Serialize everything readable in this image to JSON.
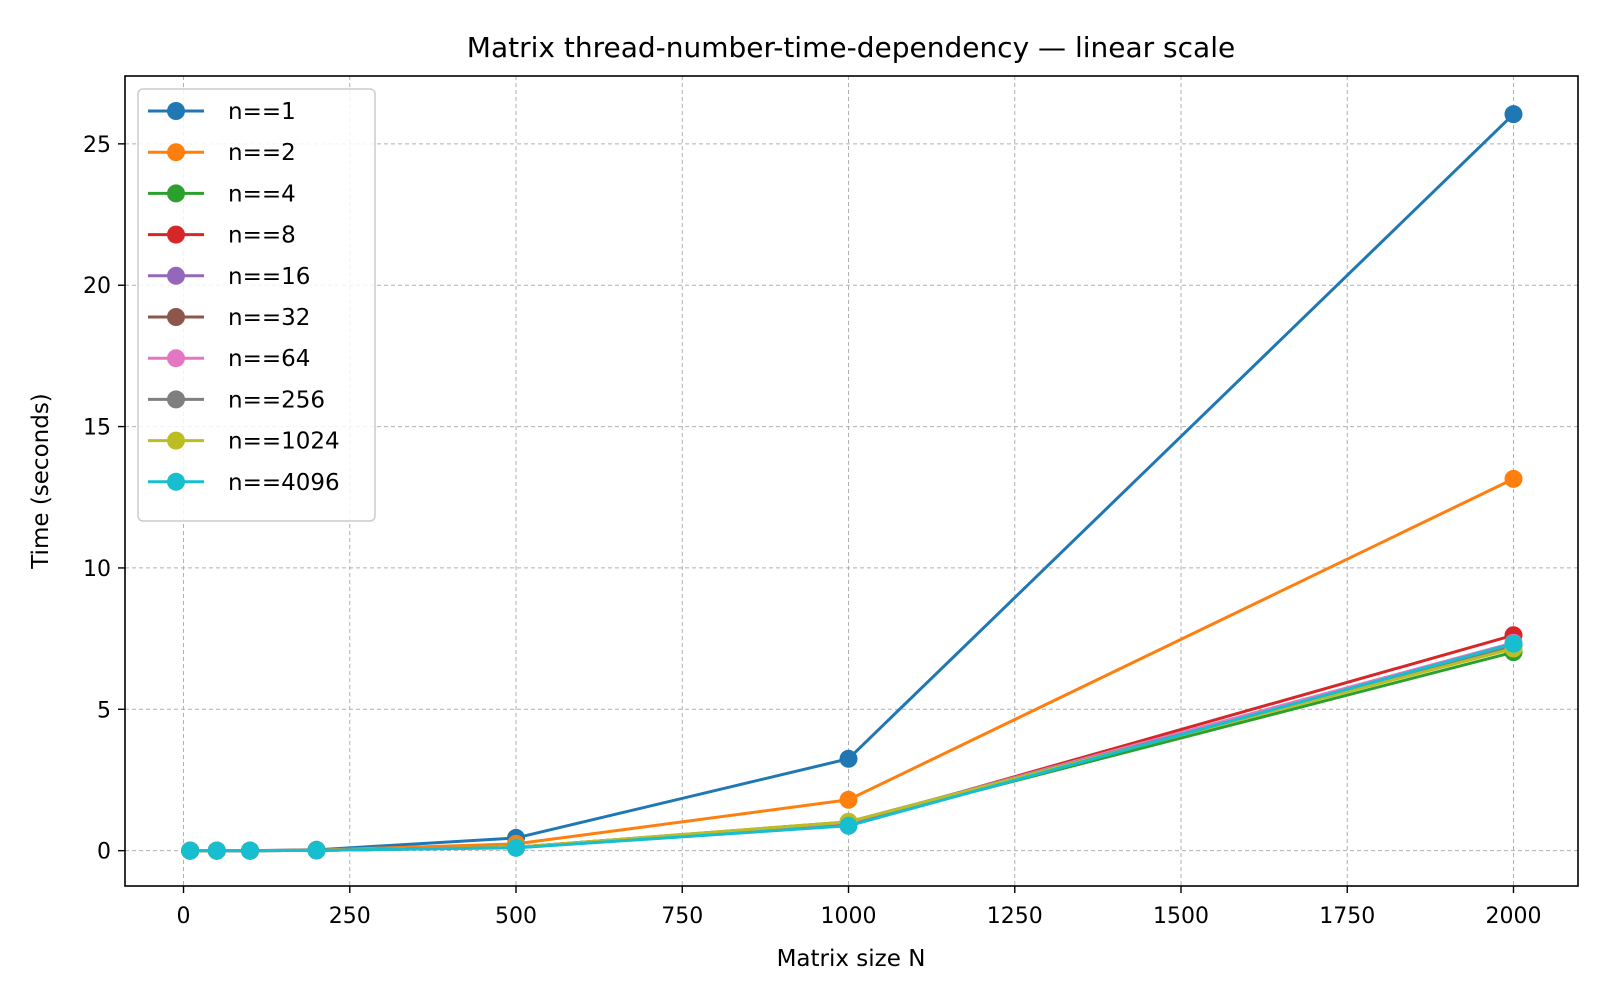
{
  "chart_data": {
    "type": "line",
    "title": "Matrix thread-number-time-dependency — linear scale",
    "xlabel": "Matrix size N",
    "ylabel": "Time (seconds)",
    "xlim": [
      -88,
      2097
    ],
    "ylim": [
      -1.25,
      27.4
    ],
    "xticks": [
      0,
      250,
      500,
      750,
      1000,
      1250,
      1500,
      1750,
      2000
    ],
    "yticks": [
      0,
      5,
      10,
      15,
      20,
      25
    ],
    "grid": true,
    "legend_position": "top-left",
    "x": [
      10,
      50,
      100,
      200,
      500,
      1000,
      2000
    ],
    "series": [
      {
        "name": "n==1",
        "color": "#1f77b4",
        "values": [
          0.0,
          0.0,
          0.0,
          0.03,
          0.45,
          3.25,
          26.05
        ]
      },
      {
        "name": "n==2",
        "color": "#ff7f0e",
        "values": [
          0.0,
          0.0,
          0.0,
          0.02,
          0.24,
          1.8,
          13.15
        ]
      },
      {
        "name": "n==4",
        "color": "#2ca02c",
        "values": [
          0.0,
          0.0,
          0.0,
          0.01,
          0.12,
          0.95,
          7.02
        ]
      },
      {
        "name": "n==8",
        "color": "#d62728",
        "values": [
          0.0,
          0.0,
          0.0,
          0.01,
          0.12,
          0.95,
          7.62
        ]
      },
      {
        "name": "n==16",
        "color": "#9467bd",
        "values": [
          0.0,
          0.0,
          0.0,
          0.01,
          0.12,
          1.0,
          7.3
        ]
      },
      {
        "name": "n==32",
        "color": "#8c564b",
        "values": [
          0.0,
          0.0,
          0.0,
          0.01,
          0.12,
          0.98,
          7.25
        ]
      },
      {
        "name": "n==64",
        "color": "#e377c2",
        "values": [
          0.0,
          0.0,
          0.0,
          0.01,
          0.12,
          1.0,
          7.35
        ]
      },
      {
        "name": "n==256",
        "color": "#7f7f7f",
        "values": [
          0.0,
          0.0,
          0.0,
          0.01,
          0.12,
          1.02,
          7.2
        ]
      },
      {
        "name": "n==1024",
        "color": "#bcbd22",
        "values": [
          0.0,
          0.0,
          0.0,
          0.01,
          0.12,
          1.02,
          7.15
        ]
      },
      {
        "name": "n==4096",
        "color": "#17becf",
        "values": [
          0.0,
          0.0,
          0.0,
          0.01,
          0.1,
          0.88,
          7.32
        ]
      }
    ]
  }
}
